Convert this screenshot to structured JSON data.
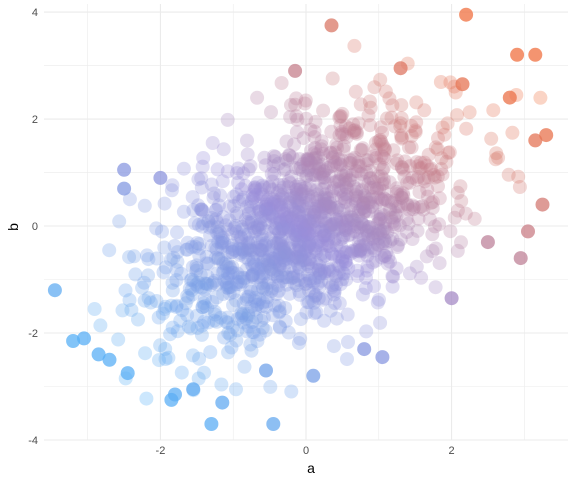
{
  "chart_data": {
    "type": "scatter",
    "title": "",
    "xlabel": "a",
    "ylabel": "b",
    "xlim": [
      -3.6,
      3.6
    ],
    "ylim": [
      -4.0,
      4.15
    ],
    "x_ticks": [
      -2,
      0,
      2
    ],
    "y_ticks": [
      -4,
      -2,
      0,
      2,
      4
    ],
    "grid": true,
    "legend": "none",
    "color_gradient": {
      "low": "#56b1f7",
      "mid": "#9b8fd8",
      "high": "#f07040"
    },
    "point_opacity": 0.3,
    "background": "#ffffff",
    "gridline_color": "#ebebeb",
    "highlighted_points": [
      {
        "x": -3.45,
        "y": -1.2
      },
      {
        "x": -3.05,
        "y": -2.1
      },
      {
        "x": -3.2,
        "y": -2.15
      },
      {
        "x": -2.85,
        "y": -2.4
      },
      {
        "x": -2.7,
        "y": -2.5
      },
      {
        "x": -2.45,
        "y": -2.75
      },
      {
        "x": -1.85,
        "y": -3.25
      },
      {
        "x": -1.8,
        "y": -3.15
      },
      {
        "x": -1.55,
        "y": -3.05
      },
      {
        "x": -1.3,
        "y": -3.7
      },
      {
        "x": -1.15,
        "y": -3.3
      },
      {
        "x": -0.45,
        "y": -3.7
      },
      {
        "x": 0.35,
        "y": 3.75
      },
      {
        "x": 2.2,
        "y": 3.95
      },
      {
        "x": 2.9,
        "y": 3.2
      },
      {
        "x": 3.15,
        "y": 3.2
      },
      {
        "x": -0.15,
        "y": 2.9
      },
      {
        "x": 1.3,
        "y": 2.95
      },
      {
        "x": 2.15,
        "y": 2.65
      },
      {
        "x": 2.8,
        "y": 2.4
      },
      {
        "x": 3.3,
        "y": 1.7
      },
      {
        "x": 3.15,
        "y": 1.6
      },
      {
        "x": 3.25,
        "y": 0.4
      },
      {
        "x": 3.05,
        "y": -0.1
      },
      {
        "x": 2.95,
        "y": -0.6
      },
      {
        "x": 2.5,
        "y": -0.3
      },
      {
        "x": 2.0,
        "y": -1.35
      },
      {
        "x": -2.5,
        "y": 1.05
      },
      {
        "x": -2.5,
        "y": 0.7
      },
      {
        "x": -2.0,
        "y": 0.9
      },
      {
        "x": -0.55,
        "y": -2.7
      },
      {
        "x": 0.1,
        "y": -2.8
      },
      {
        "x": 0.8,
        "y": -2.3
      },
      {
        "x": 1.05,
        "y": -2.45
      }
    ],
    "cloud": {
      "n": 1400,
      "x_mean": 0.0,
      "x_sd": 1.0,
      "y_mean": 0.0,
      "y_sd": 1.05,
      "correlation": 0.5
    }
  }
}
